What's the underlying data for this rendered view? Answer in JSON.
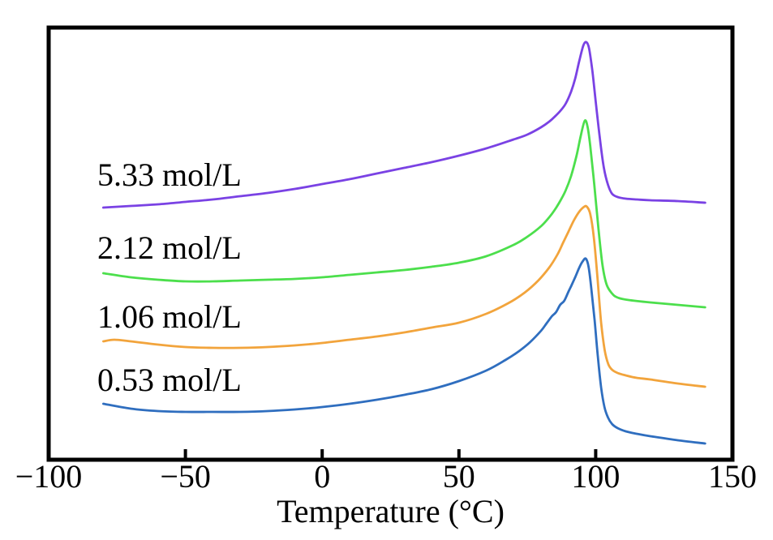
{
  "figure": {
    "background": "#ffffff",
    "frame_color": "#000000"
  },
  "chart_data": {
    "type": "line",
    "title": "",
    "xlabel": "Temperature (°C)",
    "ylabel": "",
    "grid": false,
    "legend": "inline curve annotations at left of each trace",
    "x_axis": {
      "min": -100,
      "max": 150,
      "ticks": [
        -100,
        -50,
        0,
        50,
        100,
        150
      ],
      "unit": "°C"
    },
    "y_axis": {
      "label": "",
      "scale": "arbitrary-units",
      "note": "no y ticks or labels shown; series y values are vertical positions in image pixels (top-down)"
    },
    "data_x_range": [
      -80,
      140
    ],
    "series": [
      {
        "label": "5.33 mol/L",
        "color": "#7a42e4",
        "points": [
          [
            -80,
            256
          ],
          [
            -70,
            254
          ],
          [
            -60,
            252
          ],
          [
            -50,
            249
          ],
          [
            -40,
            246
          ],
          [
            -30,
            242
          ],
          [
            -20,
            238
          ],
          [
            -10,
            233
          ],
          [
            0,
            227
          ],
          [
            10,
            221
          ],
          [
            20,
            214
          ],
          [
            30,
            207
          ],
          [
            40,
            200
          ],
          [
            50,
            192
          ],
          [
            60,
            183
          ],
          [
            70,
            172
          ],
          [
            75,
            166
          ],
          [
            80,
            157
          ],
          [
            83,
            150
          ],
          [
            85,
            144
          ],
          [
            87,
            137
          ],
          [
            89,
            128
          ],
          [
            91,
            113
          ],
          [
            92.5,
            97
          ],
          [
            94,
            75
          ],
          [
            95.5,
            56
          ],
          [
            96.6,
            52
          ],
          [
            97.6,
            60
          ],
          [
            98.8,
            88
          ],
          [
            100,
            125
          ],
          [
            101.5,
            170
          ],
          [
            103,
            207
          ],
          [
            104.5,
            228
          ],
          [
            106,
            239
          ],
          [
            108,
            243
          ],
          [
            111,
            245
          ],
          [
            115,
            246
          ],
          [
            120,
            247
          ],
          [
            130,
            248
          ],
          [
            140,
            250
          ]
        ]
      },
      {
        "label": "2.12 mol/L",
        "color": "#4cdf4c",
        "points": [
          [
            -80,
            337
          ],
          [
            -70,
            342
          ],
          [
            -60,
            345
          ],
          [
            -50,
            347
          ],
          [
            -40,
            347
          ],
          [
            -30,
            346
          ],
          [
            -20,
            345
          ],
          [
            -10,
            344
          ],
          [
            0,
            342
          ],
          [
            10,
            339
          ],
          [
            20,
            336
          ],
          [
            30,
            333
          ],
          [
            40,
            329
          ],
          [
            50,
            324
          ],
          [
            60,
            316
          ],
          [
            70,
            302
          ],
          [
            75,
            292
          ],
          [
            80,
            279
          ],
          [
            83,
            268
          ],
          [
            85,
            259
          ],
          [
            87,
            248
          ],
          [
            89,
            235
          ],
          [
            91,
            217
          ],
          [
            93,
            192
          ],
          [
            94.5,
            168
          ],
          [
            96,
            149
          ],
          [
            97,
            156
          ],
          [
            98,
            180
          ],
          [
            99.5,
            228
          ],
          [
            101,
            282
          ],
          [
            102.5,
            327
          ],
          [
            104,
            351
          ],
          [
            106,
            362
          ],
          [
            108,
            367
          ],
          [
            112,
            370
          ],
          [
            120,
            373
          ],
          [
            130,
            376
          ],
          [
            140,
            379
          ]
        ]
      },
      {
        "label": "1.06 mol/L",
        "color": "#f2a43c",
        "points": [
          [
            -80,
            421
          ],
          [
            -76,
            419
          ],
          [
            -70,
            421
          ],
          [
            -60,
            425
          ],
          [
            -50,
            428
          ],
          [
            -40,
            429
          ],
          [
            -30,
            429
          ],
          [
            -20,
            428
          ],
          [
            -10,
            426
          ],
          [
            0,
            423
          ],
          [
            10,
            419
          ],
          [
            20,
            415
          ],
          [
            30,
            410
          ],
          [
            40,
            404
          ],
          [
            50,
            398
          ],
          [
            60,
            387
          ],
          [
            68,
            374
          ],
          [
            74,
            361
          ],
          [
            79,
            346
          ],
          [
            83,
            330
          ],
          [
            86,
            314
          ],
          [
            88,
            300
          ],
          [
            90,
            286
          ],
          [
            92,
            272
          ],
          [
            94,
            261
          ],
          [
            95.8,
            255
          ],
          [
            96.8,
            255
          ],
          [
            98,
            264
          ],
          [
            99.3,
            292
          ],
          [
            100.6,
            340
          ],
          [
            102,
            398
          ],
          [
            103.3,
            432
          ],
          [
            104.6,
            449
          ],
          [
            106,
            456
          ],
          [
            108,
            460
          ],
          [
            111,
            463
          ],
          [
            115,
            466
          ],
          [
            120,
            468
          ],
          [
            130,
            473
          ],
          [
            140,
            477
          ]
        ]
      },
      {
        "label": "0.53 mol/L",
        "color": "#2f6ebf",
        "points": [
          [
            -80,
            498
          ],
          [
            -70,
            504
          ],
          [
            -60,
            507
          ],
          [
            -50,
            508
          ],
          [
            -40,
            508
          ],
          [
            -30,
            508
          ],
          [
            -20,
            507
          ],
          [
            -10,
            505
          ],
          [
            0,
            502
          ],
          [
            10,
            498
          ],
          [
            20,
            493
          ],
          [
            30,
            487
          ],
          [
            40,
            480
          ],
          [
            50,
            470
          ],
          [
            60,
            457
          ],
          [
            67,
            444
          ],
          [
            72,
            433
          ],
          [
            76,
            422
          ],
          [
            80,
            408
          ],
          [
            82,
            399
          ],
          [
            84,
            390
          ],
          [
            85.5,
            385
          ],
          [
            87,
            376
          ],
          [
            88.5,
            371
          ],
          [
            90,
            360
          ],
          [
            91,
            353
          ],
          [
            92.5,
            342
          ],
          [
            94,
            330
          ],
          [
            95.3,
            322
          ],
          [
            96.4,
            319
          ],
          [
            97.4,
            329
          ],
          [
            98.4,
            356
          ],
          [
            99.6,
            395
          ],
          [
            100.8,
            440
          ],
          [
            102,
            478
          ],
          [
            103.2,
            502
          ],
          [
            104.5,
            515
          ],
          [
            106,
            523
          ],
          [
            108,
            528
          ],
          [
            111,
            532
          ],
          [
            115,
            535
          ],
          [
            120,
            538
          ],
          [
            130,
            543
          ],
          [
            140,
            547
          ]
        ]
      }
    ]
  }
}
